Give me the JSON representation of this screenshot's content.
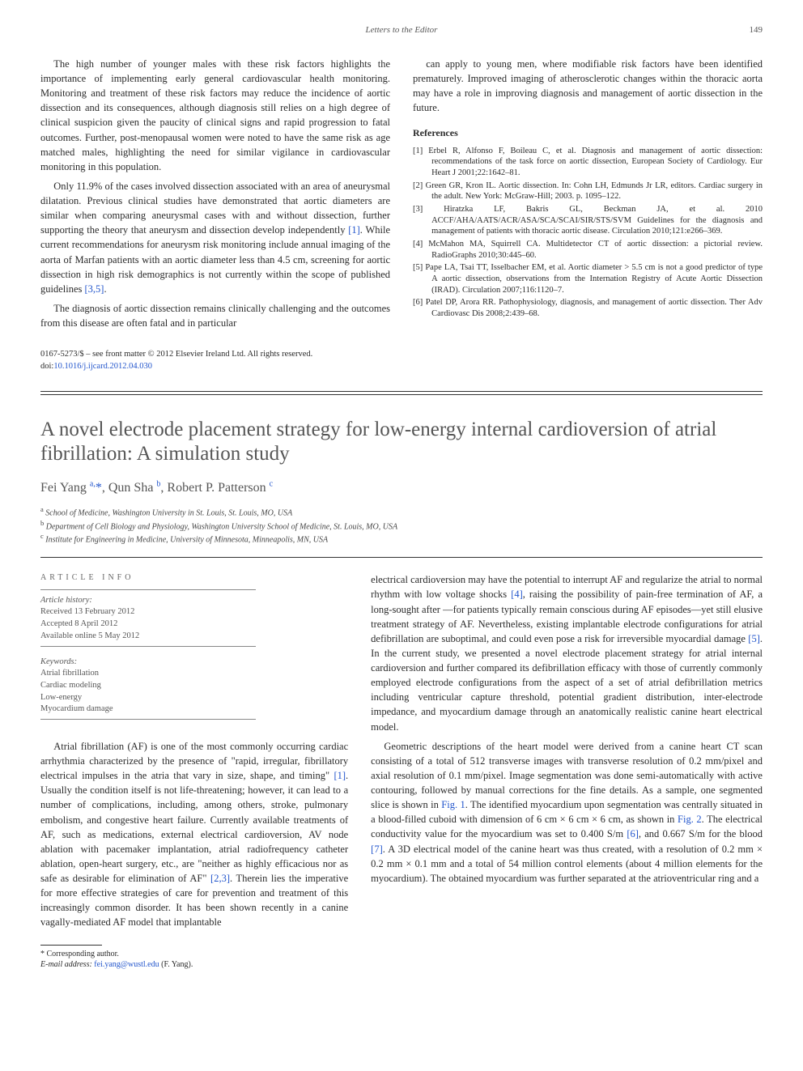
{
  "page": {
    "journal_header": "Letters to the Editor",
    "page_number": "149"
  },
  "upper": {
    "paragraphs": [
      "The high number of younger males with these risk factors highlights the importance of implementing early general cardiovascular health monitoring. Monitoring and treatment of these risk factors may reduce the incidence of aortic dissection and its consequences, although diagnosis still relies on a high degree of clinical suspicion given the paucity of clinical signs and rapid progression to fatal outcomes. Further, post-menopausal women were noted to have the same risk as age matched males, highlighting the need for similar vigilance in cardiovascular monitoring in this population.",
      "Only 11.9% of the cases involved dissection associated with an area of aneurysmal dilatation. Previous clinical studies have demonstrated that aortic diameters are similar when comparing aneurysmal cases with and without dissection, further supporting the theory that aneurysm and dissection develop independently [1]. While current recommendations for aneurysm risk monitoring include annual imaging of the aorta of Marfan patients with an aortic diameter less than 4.5 cm, screening for aortic dissection in high risk demographics is not currently within the scope of published guidelines [3,5].",
      "The diagnosis of aortic dissection remains clinically challenging and the outcomes from this disease are often fatal and in particular",
      "can apply to young men, where modifiable risk factors have been identified prematurely. Improved imaging of atherosclerotic changes within the thoracic aorta may have a role in improving diagnosis and management of aortic dissection in the future."
    ],
    "refs_heading": "References",
    "references": [
      "[1] Erbel R, Alfonso F, Boileau C, et al. Diagnosis and management of aortic dissection: recommendations of the task force on aortic dissection, European Society of Cardiology. Eur Heart J 2001;22:1642–81.",
      "[2] Green GR, Kron IL. Aortic dissection. In: Cohn LH, Edmunds Jr LR, editors. Cardiac surgery in the adult. New York: McGraw-Hill; 2003. p. 1095–122.",
      "[3] Hiratzka LF, Bakris GL, Beckman JA, et al. 2010 ACCF/AHA/AATS/ACR/ASA/SCA/SCAI/SIR/STS/SVM Guidelines for the diagnosis and management of patients with thoracic aortic disease. Circulation 2010;121:e266–369.",
      "[4] McMahon MA, Squirrell CA. Multidetector CT of aortic dissection: a pictorial review. RadioGraphs 2010;30:445–60.",
      "[5] Pape LA, Tsai TT, Isselbacher EM, et al. Aortic diameter > 5.5 cm is not a good predictor of type A aortic dissection, observations from the Internation Registry of Acute Aortic Dissection (IRAD). Circulation 2007;116:1120–7.",
      "[6] Patel DP, Arora RR. Pathophysiology, diagnosis, and management of aortic dissection. Ther Adv Cardiovasc Dis 2008;2:439–68."
    ],
    "copyright": "0167-5273/$ – see front matter © 2012 Elsevier Ireland Ltd. All rights reserved.",
    "doi_label": "doi:",
    "doi": "10.1016/j.ijcard.2012.04.030"
  },
  "article": {
    "title": "A novel electrode placement strategy for low-energy internal cardioversion of atrial fibrillation: A simulation study",
    "authors_html": "Fei Yang ",
    "authors": [
      {
        "name": "Fei Yang",
        "aff": "a",
        "corr": true
      },
      {
        "name": "Qun Sha",
        "aff": "b",
        "corr": false
      },
      {
        "name": "Robert P. Patterson",
        "aff": "c",
        "corr": false
      }
    ],
    "affiliations": [
      {
        "key": "a",
        "text": "School of Medicine, Washington University in St. Louis, St. Louis, MO, USA"
      },
      {
        "key": "b",
        "text": "Department of Cell Biology and Physiology, Washington University School of Medicine, St. Louis, MO, USA"
      },
      {
        "key": "c",
        "text": "Institute for Engineering in Medicine, University of Minnesota, Minneapolis, MN, USA"
      }
    ],
    "info_heading": "ARTICLE INFO",
    "history_label": "Article history:",
    "history": [
      "Received 13 February 2012",
      "Accepted 8 April 2012",
      "Available online 5 May 2012"
    ],
    "keywords_label": "Keywords:",
    "keywords": [
      "Atrial fibrillation",
      "Cardiac modeling",
      "Low-energy",
      "Myocardium damage"
    ],
    "left_body": "Atrial fibrillation (AF) is one of the most commonly occurring cardiac arrhythmia characterized by the presence of \"rapid, irregular, fibrillatory electrical impulses in the atria that vary in size, shape, and timing\" [1]. Usually the condition itself is not life-threatening; however, it can lead to a number of complications, including, among others, stroke, pulmonary embolism, and congestive heart failure. Currently available treatments of AF, such as medications, external electrical cardioversion, AV node ablation with pacemaker implantation, atrial radiofrequency catheter ablation, open-heart surgery, etc., are \"neither as highly efficacious nor as safe as desirable for elimination of AF\" [2,3]. Therein lies the imperative for more effective strategies of care for prevention and treatment of this increasingly common disorder. It has been shown recently in a canine vagally-mediated AF model that implantable",
    "right_body": [
      "electrical cardioversion may have the potential to interrupt AF and regularize the atrial to normal rhythm with low voltage shocks [4], raising the possibility of pain-free termination of AF, a long-sought after —for patients typically remain conscious during AF episodes—yet still elusive treatment strategy of AF. Nevertheless, existing implantable electrode configurations for atrial defibrillation are suboptimal, and could even pose a risk for irreversible myocardial damage [5]. In the current study, we presented a novel electrode placement strategy for atrial internal cardioversion and further compared its defibrillation efficacy with those of currently commonly employed electrode configurations from the aspect of a set of atrial defibrillation metrics including ventricular capture threshold, potential gradient distribution, inter-electrode impedance, and myocardium damage through an anatomically realistic canine heart electrical model.",
      "Geometric descriptions of the heart model were derived from a canine heart CT scan consisting of a total of 512 transverse images with transverse resolution of 0.2 mm/pixel and axial resolution of 0.1 mm/pixel. Image segmentation was done semi-automatically with active contouring, followed by manual corrections for the fine details. As a sample, one segmented slice is shown in Fig. 1. The identified myocardium upon segmentation was centrally situated in a blood-filled cuboid with dimension of 6 cm × 6 cm × 6 cm, as shown in Fig. 2. The electrical conductivity value for the myocardium was set to 0.400 S/m [6], and 0.667 S/m for the blood [7]. A 3D electrical model of the canine heart was thus created, with a resolution of 0.2 mm × 0.2 mm × 0.1 mm and a total of 54 million control elements (about 4 million elements for the myocardium). The obtained myocardium was further separated at the atrioventricular ring and a"
    ],
    "corr_label": "* Corresponding author.",
    "email_label": "E-mail address:",
    "email": "fei.yang@wustl.edu",
    "email_who": "(F. Yang)."
  },
  "colors": {
    "link": "#2255cc",
    "text": "#2a2a2a",
    "muted": "#555555",
    "rule": "#333333"
  }
}
